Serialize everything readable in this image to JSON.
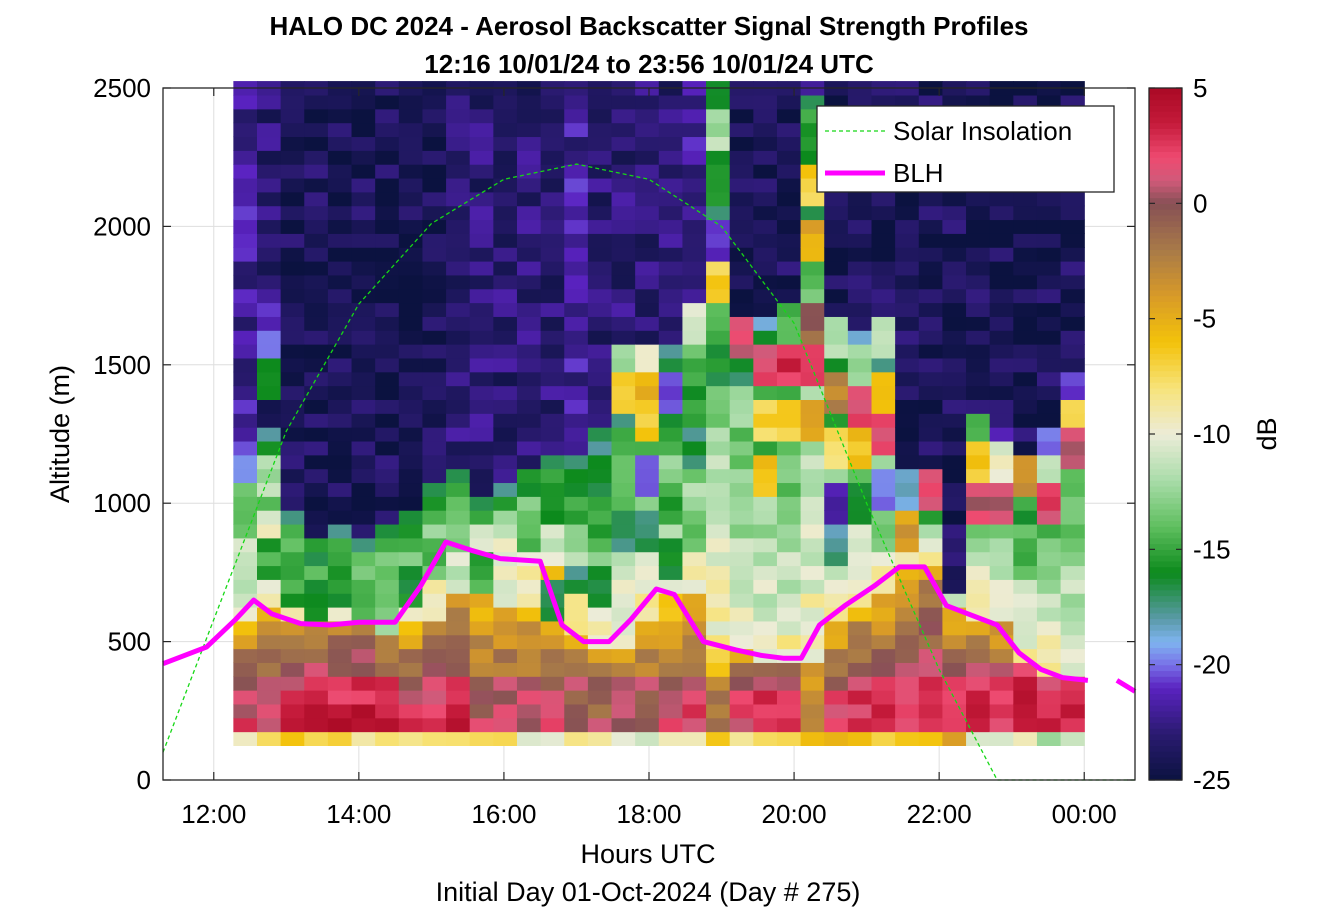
{
  "chart_data": {
    "type": "heatmap",
    "title": "HALO DC 2024 - Aerosol Backscatter Signal Strength Profiles",
    "subtitle": "12:16 10/01/24 to 23:56 10/01/24  UTC",
    "xlabel": "Hours UTC",
    "xlabel_note": "Initial Day 01-Oct-2024 (Day # 275)",
    "ylabel": "Altitude (m)",
    "colorbar_label": "dB",
    "x_ticks": [
      "12:00",
      "14:00",
      "16:00",
      "18:00",
      "20:00",
      "22:00",
      "00:00"
    ],
    "y_ticks": [
      "0",
      "500",
      "1000",
      "1500",
      "2000",
      "2500"
    ],
    "colorbar_ticks": [
      "5",
      "0",
      "-5",
      "-10",
      "-15",
      "-20",
      "-25"
    ],
    "xlim_hours": [
      11.3,
      24.7
    ],
    "ylim": [
      0,
      2500
    ],
    "clim": [
      -25,
      5
    ],
    "grid": true,
    "legend_position": "top-right",
    "legend": [
      "Solar Insolation",
      "BLH"
    ],
    "heatmap": {
      "x_start_hours": 12.27,
      "x_end_hours": 24.0,
      "y_start_m": 125,
      "y_end_m": 2500,
      "columns": [
        {
          "base": -8,
          "peak": 2,
          "blh": 600,
          "top": 1100,
          "upper": -22,
          "spikes": [
            [
              1150,
              1,
              -20
            ],
            [
              1000,
              1,
              -14
            ],
            [
              800,
              1,
              -11
            ]
          ]
        },
        {
          "base": -7,
          "peak": 2,
          "blh": 650,
          "top": 1300,
          "upper": -23,
          "spikes": [
            [
              1700,
              1,
              -21
            ],
            [
              1550,
              1,
              -19
            ],
            [
              1450,
              1,
              -16
            ],
            [
              1100,
              1,
              -12
            ],
            [
              900,
              1,
              -10
            ],
            [
              800,
              1,
              -15
            ]
          ]
        },
        {
          "base": -7,
          "peak": 3,
          "blh": 600,
          "top": 1000,
          "upper": -24,
          "spikes": [
            [
              700,
              1,
              -15
            ]
          ]
        },
        {
          "base": -8,
          "peak": 4,
          "blh": 560,
          "top": 900,
          "upper": -24,
          "spikes": [
            [
              650,
              1,
              -16
            ]
          ]
        },
        {
          "base": -8,
          "peak": 4,
          "blh": 560,
          "top": 950,
          "upper": -24,
          "spikes": [
            [
              700,
              1,
              -16
            ]
          ]
        },
        {
          "base": -9,
          "peak": 4,
          "blh": 570,
          "top": 900,
          "upper": -24,
          "spikes": [
            [
              650,
              1,
              -14
            ]
          ]
        },
        {
          "base": -8,
          "peak": 3,
          "blh": 570,
          "top": 950,
          "upper": -24,
          "spikes": [
            [
              600,
              1,
              -13
            ]
          ]
        },
        {
          "base": -8,
          "peak": 2,
          "blh": 570,
          "top": 1000,
          "upper": -24,
          "spikes": [
            [
              700,
              1,
              -16
            ]
          ]
        },
        {
          "base": -7,
          "peak": 2,
          "blh": 750,
          "top": 1100,
          "upper": -24,
          "spikes": [
            [
              800,
              1,
              -14
            ],
            [
              650,
              1,
              -9
            ]
          ]
        },
        {
          "base": -7,
          "peak": 3,
          "blh": 860,
          "top": 1150,
          "upper": -23,
          "spikes": [
            [
              900,
              1,
              -13
            ],
            [
              750,
              1,
              -11
            ]
          ]
        },
        {
          "base": -6,
          "peak": 1,
          "blh": 830,
          "top": 1050,
          "upper": -23,
          "spikes": [
            [
              750,
              1,
              -15
            ]
          ]
        },
        {
          "base": -8,
          "peak": 1,
          "blh": 800,
          "top": 1100,
          "upper": -23,
          "spikes": [
            [
              700,
              1,
              -10
            ]
          ]
        },
        {
          "base": -10,
          "peak": 1,
          "blh": 800,
          "top": 1150,
          "upper": -23,
          "spikes": [
            [
              900,
              1,
              -14
            ],
            [
              700,
              1,
              -9
            ]
          ]
        },
        {
          "base": -10,
          "peak": 1,
          "blh": 800,
          "top": 1200,
          "upper": -23,
          "spikes": [
            [
              1000,
              1,
              -16
            ],
            [
              650,
              1,
              -16
            ]
          ]
        },
        {
          "base": -9,
          "peak": 1,
          "blh": 560,
          "top": 1200,
          "upper": -22,
          "spikes": [
            [
              700,
              1,
              -17
            ],
            [
              600,
              1,
              -8
            ]
          ]
        },
        {
          "base": -10,
          "peak": 0,
          "blh": 500,
          "top": 1300,
          "upper": -23,
          "spikes": [
            [
              900,
              1,
              -15
            ],
            [
              700,
              1,
              -17
            ]
          ]
        },
        {
          "base": -10,
          "peak": 1,
          "blh": 500,
          "top": 1500,
          "upper": -23,
          "spikes": [
            [
              1500,
              1,
              -13
            ],
            [
              1400,
              1,
              -7
            ],
            [
              900,
              1,
              -17
            ]
          ]
        },
        {
          "base": -11,
          "peak": 1,
          "blh": 600,
          "top": 1500,
          "upper": -23,
          "spikes": [
            [
              1500,
              1,
              -10
            ],
            [
              1400,
              1,
              -5
            ],
            [
              1300,
              1,
              -7
            ],
            [
              1100,
              1,
              -20
            ],
            [
              900,
              1,
              -17
            ]
          ]
        },
        {
          "base": -10,
          "peak": 1,
          "blh": 690,
          "top": 1600,
          "upper": -23,
          "spikes": [
            [
              1400,
              1,
              -20
            ],
            [
              1000,
              1,
              -15
            ],
            [
              800,
              1,
              -16
            ]
          ]
        },
        {
          "base": -10,
          "peak": 2,
          "blh": 660,
          "top": 1700,
          "upper": -22,
          "spikes": [
            [
              1650,
              1,
              -10
            ],
            [
              1500,
              1,
              -14
            ],
            [
              1200,
              1,
              -17
            ],
            [
              900,
              1,
              -14
            ]
          ]
        },
        {
          "base": -7,
          "peak": -2,
          "blh": 500,
          "top": 2500,
          "upper": -16,
          "spikes": [
            [
              2500,
              1,
              -16
            ],
            [
              2350,
              1,
              -12
            ],
            [
              2150,
              1,
              -16
            ],
            [
              1950,
              1,
              -21
            ],
            [
              1800,
              1,
              -7
            ],
            [
              1500,
              1,
              -16
            ]
          ]
        },
        {
          "base": -8,
          "peak": 2,
          "blh": 470,
          "top": 1700,
          "upper": -24,
          "spikes": [
            [
              1600,
              1,
              1
            ],
            [
              1350,
              1,
              -12
            ],
            [
              1200,
              1,
              -14
            ]
          ]
        },
        {
          "base": -7,
          "peak": 3,
          "blh": 440,
          "top": 1700,
          "upper": -24,
          "spikes": [
            [
              1500,
              1,
              2
            ],
            [
              1300,
              1,
              -7
            ],
            [
              1100,
              1,
              -6
            ]
          ]
        },
        {
          "base": -6,
          "peak": 2,
          "blh": 440,
          "top": 1750,
          "upper": -24,
          "spikes": [
            [
              1650,
              1,
              -14
            ],
            [
              1500,
              1,
              3
            ],
            [
              1300,
              1,
              -7
            ]
          ]
        },
        {
          "base": -7,
          "peak": -2,
          "blh": 440,
          "top": 2500,
          "upper": -22,
          "spikes": [
            [
              2350,
              1,
              -15
            ],
            [
              2150,
              1,
              -7
            ],
            [
              1950,
              1,
              -5
            ],
            [
              1800,
              1,
              -14
            ],
            [
              1650,
              1,
              -1
            ],
            [
              1500,
              1,
              3
            ],
            [
              1300,
              1,
              -5
            ]
          ]
        },
        {
          "base": -5,
          "peak": 2,
          "blh": 560,
          "top": 1700,
          "upper": -24,
          "spikes": [
            [
              1600,
              1,
              -12
            ],
            [
              1400,
              1,
              -3
            ],
            [
              1200,
              1,
              -8
            ],
            [
              1000,
              1,
              -21
            ],
            [
              850,
              1,
              -18
            ]
          ]
        },
        {
          "base": -6,
          "peak": 3,
          "blh": 630,
          "top": 1650,
          "upper": -24,
          "spikes": [
            [
              1500,
              1,
              -12
            ],
            [
              1350,
              1,
              2
            ],
            [
              1200,
              1,
              -6
            ],
            [
              1000,
              1,
              -16
            ]
          ]
        },
        {
          "base": -6,
          "peak": 3,
          "blh": 680,
          "top": 1650,
          "upper": -24,
          "spikes": [
            [
              1600,
              1,
              -12
            ],
            [
              1400,
              1,
              -6
            ],
            [
              1250,
              1,
              2
            ],
            [
              1050,
              1,
              -20
            ],
            [
              900,
              1,
              -14
            ]
          ]
        },
        {
          "base": -6,
          "peak": 3,
          "blh": 770,
          "top": 1100,
          "upper": -24,
          "spikes": [
            [
              1050,
              1,
              -18
            ],
            [
              900,
              1,
              -4
            ]
          ]
        },
        {
          "base": -6,
          "peak": 4,
          "blh": 770,
          "top": 1100,
          "upper": -24,
          "spikes": [
            [
              1050,
              1,
              2
            ]
          ]
        },
        {
          "base": -5,
          "peak": 3,
          "blh": 620,
          "top": 700,
          "upper": -24,
          "spikes": []
        },
        {
          "base": -10,
          "peak": 3,
          "blh": 580,
          "top": 1300,
          "upper": -24,
          "spikes": [
            [
              1250,
              1,
              -14
            ],
            [
              1150,
              1,
              -6
            ],
            [
              1000,
              1,
              1
            ]
          ]
        },
        {
          "base": -10,
          "peak": 3,
          "blh": 560,
          "top": 1250,
          "upper": -24,
          "spikes": [
            [
              1200,
              1,
              -21
            ],
            [
              1150,
              1,
              -10
            ],
            [
              1000,
              1,
              1
            ]
          ]
        },
        {
          "base": -10,
          "peak": 4,
          "blh": 450,
          "top": 1150,
          "upper": -24,
          "spikes": [
            [
              1100,
              1,
              -3
            ]
          ]
        },
        {
          "base": -12,
          "peak": 3,
          "blh": 390,
          "top": 1250,
          "upper": -24,
          "spikes": [
            [
              1200,
              1,
              -20
            ],
            [
              1100,
              1,
              -11
            ],
            [
              1000,
              1,
              2
            ]
          ]
        },
        {
          "base": -10,
          "peak": 4,
          "blh": 360,
          "top": 1450,
          "upper": -24,
          "spikes": [
            [
              1400,
              1,
              -20
            ],
            [
              1300,
              1,
              -7
            ],
            [
              1200,
              1,
              1
            ]
          ]
        }
      ]
    },
    "solar_insolation": {
      "color": "#16d816",
      "points": [
        [
          11.3,
          100
        ],
        [
          12.0,
          580
        ],
        [
          13.0,
          1260
        ],
        [
          14.0,
          1720
        ],
        [
          15.0,
          2010
        ],
        [
          16.0,
          2170
        ],
        [
          17.0,
          2225
        ],
        [
          18.0,
          2170
        ],
        [
          19.0,
          2000
        ],
        [
          20.0,
          1650
        ],
        [
          21.0,
          1000
        ],
        [
          22.0,
          400
        ],
        [
          22.8,
          0
        ],
        [
          24.7,
          0
        ]
      ]
    },
    "blh": {
      "color": "#ff00ff",
      "segments": [
        [
          [
            11.3,
            420
          ],
          [
            11.9,
            480
          ],
          [
            12.3,
            580
          ],
          [
            12.55,
            650
          ],
          [
            12.8,
            600
          ],
          [
            13.2,
            565
          ],
          [
            13.6,
            560
          ],
          [
            14.0,
            570
          ],
          [
            14.5,
            570
          ],
          [
            14.85,
            700
          ],
          [
            15.2,
            860
          ],
          [
            15.55,
            830
          ],
          [
            15.95,
            800
          ],
          [
            16.5,
            790
          ],
          [
            16.8,
            560
          ],
          [
            17.1,
            500
          ],
          [
            17.45,
            500
          ],
          [
            17.75,
            580
          ],
          [
            18.1,
            690
          ],
          [
            18.35,
            670
          ],
          [
            18.75,
            500
          ],
          [
            19.2,
            470
          ],
          [
            19.55,
            450
          ],
          [
            19.85,
            440
          ],
          [
            20.1,
            440
          ],
          [
            20.35,
            560
          ],
          [
            20.7,
            630
          ],
          [
            21.1,
            700
          ],
          [
            21.45,
            770
          ],
          [
            21.8,
            770
          ],
          [
            22.1,
            630
          ],
          [
            22.4,
            600
          ],
          [
            22.8,
            560
          ],
          [
            23.1,
            460
          ],
          [
            23.4,
            400
          ],
          [
            23.7,
            370
          ],
          [
            24.05,
            360
          ]
        ],
        [
          [
            24.45,
            360
          ],
          [
            24.7,
            320
          ]
        ]
      ]
    }
  }
}
